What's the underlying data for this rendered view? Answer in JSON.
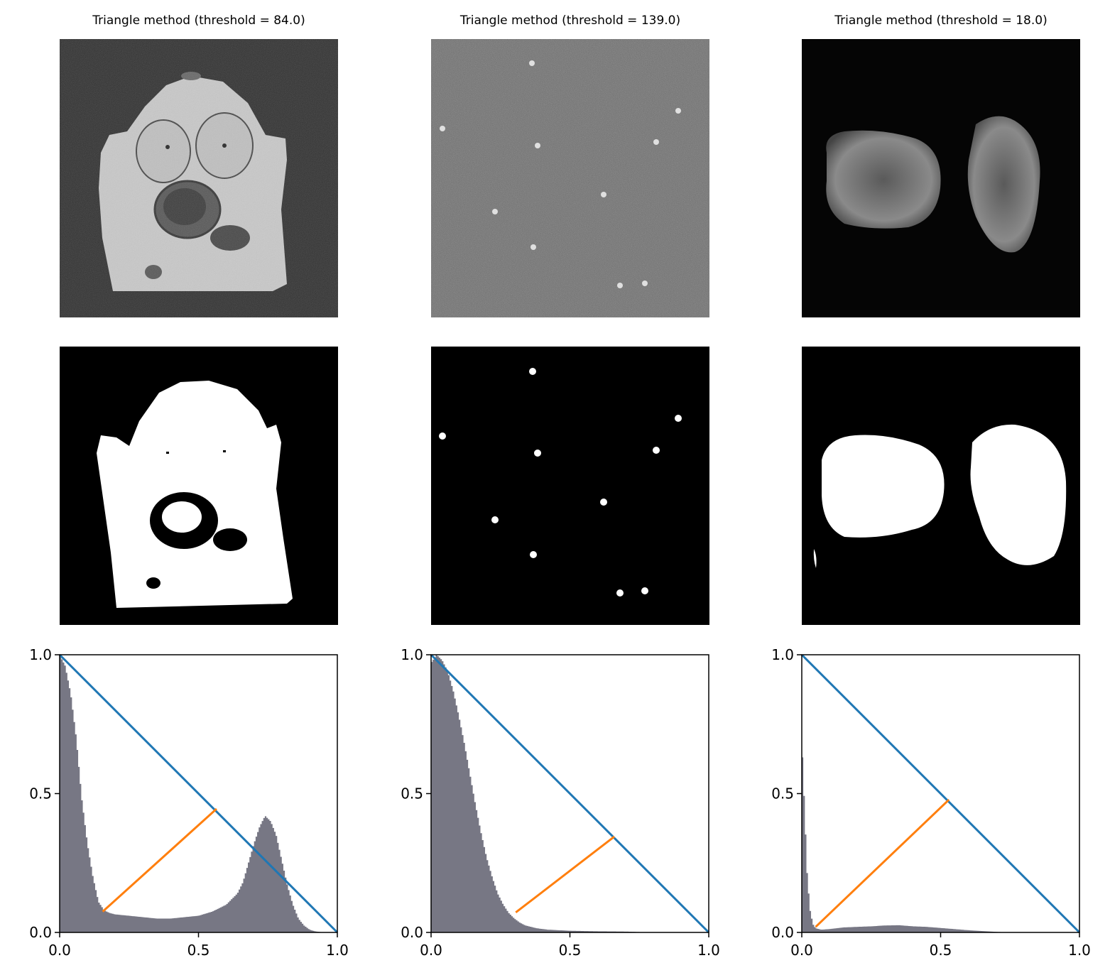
{
  "chart_data": [
    {
      "type": "histogram",
      "title": "Triangle method (threshold = 84.0)",
      "xlim": [
        0,
        1
      ],
      "ylim": [
        0,
        1
      ],
      "xticks": [
        "0.0",
        "0.5",
        "1.0"
      ],
      "yticks": [
        "0.0",
        "0.5",
        "1.0"
      ],
      "hist_color": "#777784",
      "line_color": "#1f77b4",
      "perp_color": "#ff7f0e",
      "bins": [
        [
          0.0,
          1.0
        ],
        [
          0.02,
          0.96
        ],
        [
          0.04,
          0.86
        ],
        [
          0.06,
          0.7
        ],
        [
          0.08,
          0.48
        ],
        [
          0.1,
          0.32
        ],
        [
          0.12,
          0.2
        ],
        [
          0.14,
          0.11
        ],
        [
          0.16,
          0.08
        ],
        [
          0.18,
          0.07
        ],
        [
          0.2,
          0.065
        ],
        [
          0.25,
          0.06
        ],
        [
          0.3,
          0.055
        ],
        [
          0.35,
          0.05
        ],
        [
          0.4,
          0.05
        ],
        [
          0.45,
          0.055
        ],
        [
          0.5,
          0.06
        ],
        [
          0.55,
          0.075
        ],
        [
          0.6,
          0.1
        ],
        [
          0.64,
          0.14
        ],
        [
          0.66,
          0.18
        ],
        [
          0.68,
          0.25
        ],
        [
          0.7,
          0.32
        ],
        [
          0.72,
          0.38
        ],
        [
          0.74,
          0.42
        ],
        [
          0.76,
          0.4
        ],
        [
          0.78,
          0.35
        ],
        [
          0.8,
          0.26
        ],
        [
          0.82,
          0.17
        ],
        [
          0.84,
          0.1
        ],
        [
          0.86,
          0.05
        ],
        [
          0.88,
          0.025
        ],
        [
          0.9,
          0.01
        ],
        [
          0.92,
          0.004
        ],
        [
          0.95,
          0.0
        ]
      ],
      "diagonal": [
        [
          0.0,
          1.0
        ],
        [
          1.0,
          0.0
        ]
      ],
      "perpendicular": [
        [
          0.155,
          0.075
        ],
        [
          0.565,
          0.445
        ]
      ]
    },
    {
      "type": "histogram",
      "title": "Triangle method (threshold = 139.0)",
      "xlim": [
        0,
        1
      ],
      "ylim": [
        0,
        1
      ],
      "xticks": [
        "0.0",
        "0.5",
        "1.0"
      ],
      "yticks": [
        "0.0",
        "0.5",
        "1.0"
      ],
      "hist_color": "#777784",
      "line_color": "#1f77b4",
      "perp_color": "#ff7f0e",
      "bins": [
        [
          0.0,
          0.97
        ],
        [
          0.02,
          1.0
        ],
        [
          0.04,
          0.98
        ],
        [
          0.06,
          0.94
        ],
        [
          0.08,
          0.87
        ],
        [
          0.1,
          0.78
        ],
        [
          0.12,
          0.68
        ],
        [
          0.14,
          0.57
        ],
        [
          0.16,
          0.46
        ],
        [
          0.18,
          0.36
        ],
        [
          0.2,
          0.27
        ],
        [
          0.22,
          0.2
        ],
        [
          0.24,
          0.14
        ],
        [
          0.26,
          0.1
        ],
        [
          0.28,
          0.07
        ],
        [
          0.3,
          0.05
        ],
        [
          0.32,
          0.035
        ],
        [
          0.34,
          0.025
        ],
        [
          0.38,
          0.015
        ],
        [
          0.42,
          0.01
        ],
        [
          0.5,
          0.006
        ],
        [
          0.6,
          0.004
        ],
        [
          0.7,
          0.003
        ],
        [
          0.8,
          0.0
        ]
      ],
      "diagonal": [
        [
          0.0,
          1.0
        ],
        [
          1.0,
          0.0
        ]
      ],
      "perpendicular": [
        [
          0.305,
          0.072
        ],
        [
          0.66,
          0.345
        ]
      ]
    },
    {
      "type": "histogram",
      "title": "Triangle method (threshold = 18.0)",
      "xlim": [
        0,
        1
      ],
      "ylim": [
        0,
        1
      ],
      "xticks": [
        "0.0",
        "0.5",
        "1.0"
      ],
      "yticks": [
        "0.0",
        "0.5",
        "1.0"
      ],
      "hist_color": "#777784",
      "line_color": "#1f77b4",
      "perp_color": "#ff7f0e",
      "bins": [
        [
          0.0,
          0.7
        ],
        [
          0.01,
          0.45
        ],
        [
          0.02,
          0.2
        ],
        [
          0.03,
          0.08
        ],
        [
          0.04,
          0.03
        ],
        [
          0.05,
          0.015
        ],
        [
          0.07,
          0.01
        ],
        [
          0.1,
          0.012
        ],
        [
          0.15,
          0.018
        ],
        [
          0.2,
          0.02
        ],
        [
          0.25,
          0.022
        ],
        [
          0.3,
          0.025
        ],
        [
          0.35,
          0.026
        ],
        [
          0.4,
          0.022
        ],
        [
          0.45,
          0.02
        ],
        [
          0.5,
          0.016
        ],
        [
          0.55,
          0.012
        ],
        [
          0.6,
          0.008
        ],
        [
          0.65,
          0.005
        ],
        [
          0.7,
          0.002
        ],
        [
          0.75,
          0.0
        ]
      ],
      "diagonal": [
        [
          0.0,
          1.0
        ],
        [
          1.0,
          0.0
        ]
      ],
      "perpendicular": [
        [
          0.05,
          0.02
        ],
        [
          0.53,
          0.478
        ]
      ]
    }
  ],
  "images": [
    {
      "original": "noisy-ghost-figure",
      "binary": "binary-ghost-figure"
    },
    {
      "original": "noisy-spots",
      "binary": "binary-spots"
    },
    {
      "original": "nuclei",
      "binary": "binary-nuclei"
    }
  ]
}
